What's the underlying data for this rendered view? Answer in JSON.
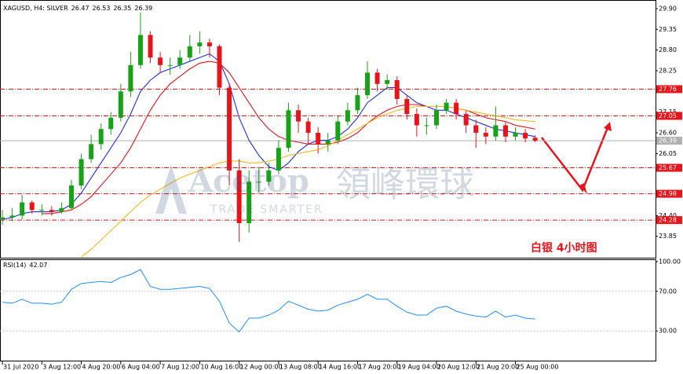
{
  "chart_data": [
    {
      "type": "candlestick",
      "title": "XAGUSD, H4:  SILVER",
      "annotation": "白银  4小时图",
      "watermark": [
        "Acetop",
        "領峰環球",
        "TRADE SMARTER"
      ],
      "up_color": "#17a317",
      "down_color": "#e8141a",
      "xlim": [
        -0.24,
        66.2
      ],
      "ylim": [
        23.28,
        30.13
      ],
      "yticks": [
        {
          "value": 29.9,
          "label": "29.90"
        },
        29.35,
        {
          "value": 28.8,
          "label": "28.80"
        },
        28.25,
        27.15,
        {
          "value": 26.6,
          "label": "26.60"
        },
        26.05,
        {
          "value": 24.4,
          "label": "24.40"
        },
        23.85
      ],
      "levels": [
        27.76,
        27.05,
        25.67,
        24.98,
        24.28
      ],
      "level_color": "#e8141a",
      "open": [
        24.3,
        24.35,
        24.4,
        24.75,
        24.55,
        24.55,
        24.5,
        24.6,
        25.2,
        25.9,
        26.3,
        26.7,
        27.0,
        27.7,
        28.4,
        29.2,
        28.6,
        28.4,
        28.4,
        28.6,
        28.9,
        29.0,
        28.9,
        27.8,
        25.6,
        24.2,
        25.3,
        25.3,
        25.6,
        26.2,
        27.2,
        26.9,
        26.6,
        26.3,
        26.4,
        26.9,
        27.2,
        27.6,
        28.2,
        27.9,
        28.0,
        27.5,
        27.1,
        26.8,
        26.8,
        27.2,
        27.4,
        27.1,
        26.8,
        26.6,
        26.5,
        26.8,
        26.5,
        26.6,
        26.47
      ],
      "high": [
        24.55,
        24.6,
        24.95,
        24.8,
        24.7,
        24.65,
        24.75,
        25.35,
        26.05,
        26.55,
        26.85,
        27.15,
        27.9,
        28.75,
        29.8,
        29.3,
        28.75,
        28.6,
        28.8,
        29.2,
        29.3,
        29.1,
        28.95,
        27.9,
        25.9,
        25.6,
        25.7,
        25.8,
        26.4,
        27.4,
        27.35,
        27.0,
        26.75,
        26.6,
        27.05,
        27.4,
        27.8,
        28.5,
        28.3,
        28.15,
        28.1,
        27.6,
        27.25,
        27.0,
        27.35,
        27.5,
        27.5,
        27.2,
        26.95,
        26.75,
        27.3,
        26.9,
        26.75,
        26.7,
        26.53
      ],
      "low": [
        24.15,
        24.25,
        24.3,
        24.45,
        24.4,
        24.4,
        24.45,
        24.55,
        25.1,
        25.8,
        26.15,
        26.55,
        26.9,
        27.55,
        28.3,
        28.45,
        28.2,
        28.15,
        28.3,
        28.5,
        28.7,
        28.6,
        27.6,
        25.2,
        23.7,
        23.95,
        25.0,
        25.2,
        25.5,
        26.1,
        26.6,
        26.3,
        26.05,
        26.1,
        26.3,
        26.8,
        27.1,
        27.5,
        27.7,
        27.75,
        27.35,
        26.95,
        26.5,
        26.55,
        26.7,
        27.1,
        26.95,
        26.6,
        26.2,
        26.3,
        26.4,
        26.35,
        26.4,
        26.35,
        26.35
      ],
      "close": [
        24.35,
        24.4,
        24.75,
        24.55,
        24.55,
        24.5,
        24.6,
        25.2,
        25.9,
        26.3,
        26.7,
        27.0,
        27.7,
        28.4,
        29.2,
        28.6,
        28.4,
        28.4,
        28.6,
        28.9,
        29.0,
        28.9,
        27.8,
        25.6,
        24.2,
        25.3,
        25.3,
        25.6,
        26.2,
        27.2,
        26.9,
        26.6,
        26.3,
        26.4,
        26.9,
        27.2,
        27.6,
        28.2,
        27.9,
        28.0,
        27.5,
        27.1,
        26.8,
        26.8,
        27.2,
        27.4,
        27.1,
        26.8,
        26.6,
        26.5,
        26.8,
        26.5,
        26.6,
        26.45,
        26.39
      ],
      "series": [
        {
          "color": "#1f2fe0",
          "values": [
            24.3,
            24.35,
            24.45,
            24.5,
            24.5,
            24.5,
            24.55,
            24.7,
            25.0,
            25.4,
            25.8,
            26.2,
            26.6,
            27.1,
            27.7,
            28.0,
            28.2,
            28.3,
            28.4,
            28.5,
            28.6,
            28.7,
            28.5,
            27.9,
            27.0,
            26.4,
            26.0,
            25.7,
            25.6,
            25.8,
            26.1,
            26.3,
            26.4,
            26.4,
            26.5,
            26.7,
            27.0,
            27.4,
            27.6,
            27.8,
            27.8,
            27.6,
            27.4,
            27.3,
            27.2,
            27.2,
            27.1,
            27.0,
            26.9,
            26.8,
            26.7,
            26.65,
            26.6,
            26.55,
            26.5
          ]
        },
        {
          "color": "#e8141a",
          "values": [
            null,
            null,
            null,
            null,
            24.45,
            24.45,
            24.5,
            24.55,
            24.7,
            24.9,
            25.2,
            25.5,
            25.8,
            26.2,
            26.7,
            27.2,
            27.6,
            27.9,
            28.1,
            28.3,
            28.45,
            28.5,
            28.45,
            28.2,
            27.8,
            27.4,
            27.0,
            26.7,
            26.5,
            26.4,
            26.35,
            26.3,
            26.3,
            26.3,
            26.35,
            26.45,
            26.6,
            26.85,
            27.05,
            27.2,
            27.3,
            27.35,
            27.35,
            27.3,
            27.3,
            27.3,
            27.25,
            27.2,
            27.1,
            27.0,
            26.95,
            26.9,
            26.8,
            26.75,
            26.7
          ]
        },
        {
          "color": "#f5b820",
          "values": [
            null,
            null,
            null,
            null,
            null,
            null,
            null,
            null,
            23.3,
            23.5,
            23.75,
            24.0,
            24.25,
            24.5,
            24.75,
            24.95,
            25.1,
            25.25,
            25.4,
            25.5,
            25.6,
            25.7,
            25.8,
            25.85,
            25.85,
            25.8,
            25.8,
            25.85,
            25.9,
            26.0,
            26.05,
            26.1,
            26.15,
            26.25,
            26.4,
            26.55,
            26.7,
            26.85,
            27.0,
            27.1,
            27.2,
            27.25,
            27.3,
            27.3,
            27.3,
            27.3,
            27.25,
            27.2,
            27.15,
            27.1,
            27.05,
            27.0,
            26.95,
            26.92,
            26.9
          ]
        }
      ]
    },
    {
      "type": "line",
      "title": "RSI(14)",
      "color": "#1e90ff",
      "xlim": [
        -0.24,
        66.2
      ],
      "ylim": [
        0,
        100
      ],
      "yticks": [
        {
          "value": 100,
          "label": "100.00"
        },
        {
          "value": 70,
          "label": "70.00"
        },
        {
          "value": 30,
          "label": "30.00"
        }
      ],
      "xticks": [
        {
          "value": 0,
          "label": "31 Jul 2020"
        },
        {
          "value": 4,
          "label": "3 Aug 12:00"
        },
        {
          "value": 8,
          "label": "4 Aug 20:00"
        },
        {
          "value": 12,
          "label": "6 Aug 04:00"
        },
        {
          "value": 16,
          "label": "7 Aug 12:00"
        },
        {
          "value": 20,
          "label": "10 Aug 16:00"
        },
        {
          "value": 24,
          "label": "12 Aug 00:00"
        },
        {
          "value": 28,
          "label": "13 Aug 08:00"
        },
        {
          "value": 32,
          "label": "14 Aug 16:00"
        },
        {
          "value": 36,
          "label": "17 Aug 20:00"
        },
        {
          "value": 40,
          "label": "19 Aug 04:00"
        },
        {
          "value": 44,
          "label": "20 Aug 12:00"
        },
        {
          "value": 48,
          "label": "21 Aug 20:00"
        },
        {
          "value": 52,
          "label": "25 Aug 00:00"
        }
      ],
      "values": [
        59,
        58,
        62,
        58,
        58,
        57,
        59,
        72,
        78,
        79,
        80,
        79,
        84,
        87,
        92,
        75,
        72,
        72,
        73,
        74,
        75,
        73,
        60,
        38,
        29,
        43,
        43,
        46,
        51,
        60,
        56,
        52,
        50,
        51,
        56,
        59,
        62,
        67,
        62,
        62,
        55,
        49,
        46,
        46,
        53,
        55,
        50,
        47,
        45,
        44,
        50,
        44,
        46,
        43,
        42.07
      ]
    }
  ]
}
